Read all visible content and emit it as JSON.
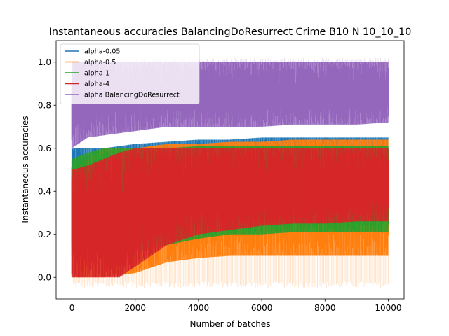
{
  "chart_data": {
    "type": "line",
    "title": "Instantaneous accuracies BalancingDoResurrect Crime B10 N 10_10_10",
    "xlabel": "Number of batches",
    "ylabel": "Instantaneous accuracies",
    "xlim": [
      -500,
      10500
    ],
    "ylim": [
      -0.1,
      1.1
    ],
    "x_ticks": [
      0,
      2000,
      4000,
      6000,
      8000,
      10000
    ],
    "x_tick_labels": [
      "0",
      "2000",
      "4000",
      "6000",
      "8000",
      "10000"
    ],
    "y_ticks": [
      0.0,
      0.2,
      0.4,
      0.6,
      0.8,
      1.0
    ],
    "y_tick_labels": [
      "0.0",
      "0.2",
      "0.4",
      "0.6",
      "0.8",
      "1.0"
    ],
    "legend_placement": "top-left",
    "grid": false,
    "x_range": [
      0,
      10000
    ],
    "series": [
      {
        "name": "alpha-0.05",
        "color": "#1f77b4",
        "envelope": {
          "x": [
            0,
            500,
            1000,
            2000,
            3000,
            4000,
            5000,
            6000,
            7000,
            8000,
            9000,
            10000
          ],
          "low": [
            0.1,
            0.1,
            0.1,
            0.12,
            0.15,
            0.2,
            0.22,
            0.24,
            0.25,
            0.25,
            0.26,
            0.26
          ],
          "high": [
            0.6,
            0.6,
            0.6,
            0.62,
            0.63,
            0.64,
            0.64,
            0.65,
            0.65,
            0.65,
            0.65,
            0.65
          ]
        }
      },
      {
        "name": "alpha-0.5",
        "color": "#ff7f0e",
        "envelope": {
          "x": [
            0,
            500,
            1000,
            2000,
            3000,
            4000,
            5000,
            6000,
            7000,
            8000,
            9000,
            10000
          ],
          "low": [
            0.0,
            0.0,
            0.0,
            0.02,
            0.07,
            0.09,
            0.1,
            0.1,
            0.1,
            0.1,
            0.1,
            0.1
          ],
          "high": [
            0.5,
            0.55,
            0.6,
            0.6,
            0.62,
            0.62,
            0.63,
            0.63,
            0.64,
            0.64,
            0.64,
            0.64
          ]
        }
      },
      {
        "name": "alpha-1",
        "color": "#2ca02c",
        "envelope": {
          "x": [
            0,
            500,
            1000,
            2000,
            3000,
            4000,
            5000,
            6000,
            7000,
            8000,
            9000,
            10000
          ],
          "low": [
            0.1,
            0.1,
            0.1,
            0.12,
            0.15,
            0.18,
            0.2,
            0.2,
            0.21,
            0.21,
            0.21,
            0.21
          ],
          "high": [
            0.55,
            0.58,
            0.6,
            0.6,
            0.6,
            0.61,
            0.61,
            0.61,
            0.61,
            0.61,
            0.61,
            0.61
          ]
        }
      },
      {
        "name": "alpha-4",
        "color": "#d62728",
        "envelope": {
          "x": [
            0,
            500,
            1000,
            1500,
            2000,
            3000,
            4000,
            5000,
            6000,
            7000,
            8000,
            9000,
            10000
          ],
          "low": [
            0.0,
            0.0,
            0.0,
            0.0,
            0.05,
            0.15,
            0.2,
            0.22,
            0.24,
            0.25,
            0.25,
            0.26,
            0.26
          ],
          "high": [
            0.5,
            0.52,
            0.55,
            0.58,
            0.6,
            0.6,
            0.6,
            0.6,
            0.6,
            0.6,
            0.6,
            0.6,
            0.6
          ]
        }
      },
      {
        "name": "alpha BalancingDoResurrect",
        "color": "#9467bd",
        "envelope": {
          "x": [
            0,
            500,
            1000,
            2000,
            3000,
            4000,
            5000,
            6000,
            7000,
            8000,
            9000,
            10000
          ],
          "low": [
            0.6,
            0.65,
            0.66,
            0.68,
            0.7,
            0.7,
            0.7,
            0.7,
            0.71,
            0.71,
            0.71,
            0.72
          ],
          "high": [
            1.0,
            1.0,
            1.0,
            1.0,
            1.0,
            1.0,
            1.0,
            1.0,
            1.0,
            1.0,
            1.0,
            1.0
          ]
        }
      }
    ],
    "faint_extremes": {
      "low": -0.05,
      "high": 1.02
    }
  }
}
